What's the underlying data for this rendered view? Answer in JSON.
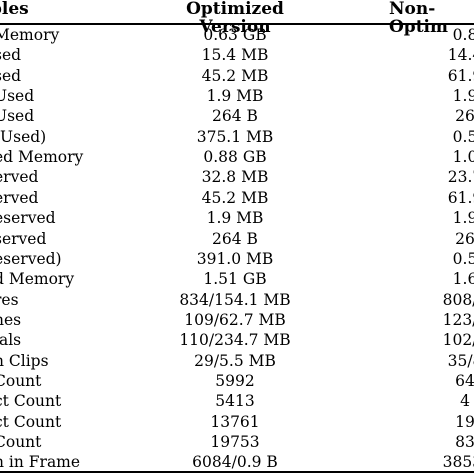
{
  "header": {
    "variables": "bles",
    "optimized": "Optimized Version",
    "non_optimized": "Non-Optim"
  },
  "rows": [
    {
      "variable": "Memory",
      "optimized": "0.63 GB",
      "non_optimized": "0.8"
    },
    {
      "variable": "sed",
      "optimized": "15.4 MB",
      "non_optimized": "14.4"
    },
    {
      "variable": "sed",
      "optimized": "45.2 MB",
      "non_optimized": "61.9"
    },
    {
      "variable": "Used",
      "optimized": "1.9 MB",
      "non_optimized": "1.9"
    },
    {
      "variable": "Used",
      "optimized": "264 B",
      "non_optimized": "26"
    },
    {
      "variable": "(Used)",
      "optimized": "375.1 MB",
      "non_optimized": "0.5"
    },
    {
      "variable": "ed Memory",
      "optimized": "0.88 GB",
      "non_optimized": "1.0"
    },
    {
      "variable": "erved",
      "optimized": "32.8 MB",
      "non_optimized": "23.7"
    },
    {
      "variable": "erved",
      "optimized": "45.2 MB",
      "non_optimized": "61.9"
    },
    {
      "variable": "eserved",
      "optimized": "1.9 MB",
      "non_optimized": "1.9"
    },
    {
      "variable": "served",
      "optimized": "264 B",
      "non_optimized": "26"
    },
    {
      "variable": "eserved)",
      "optimized": "391.0 MB",
      "non_optimized": "0.5"
    },
    {
      "variable": "d Memory",
      "optimized": "1.51 GB",
      "non_optimized": "1.6"
    },
    {
      "variable": "res",
      "optimized": "834/154.1 MB",
      "non_optimized": "808/1"
    },
    {
      "variable": "nes",
      "optimized": "109/62.7 MB",
      "non_optimized": "123/1"
    },
    {
      "variable": "ials",
      "optimized": "110/234.7 MB",
      "non_optimized": "102/2"
    },
    {
      "variable": "n Clips",
      "optimized": "29/5.5 MB",
      "non_optimized": "35/8"
    },
    {
      "variable": "Count",
      "optimized": "5992",
      "non_optimized": "64"
    },
    {
      "variable": "ct Count",
      "optimized": "5413",
      "non_optimized": "4"
    },
    {
      "variable": "ct Count",
      "optimized": "13761",
      "non_optimized": "19"
    },
    {
      "variable": "Count",
      "optimized": "19753",
      "non_optimized": "83"
    },
    {
      "variable": "n in Frame",
      "optimized": "6084/0.9 B",
      "non_optimized": "3853/"
    }
  ]
}
